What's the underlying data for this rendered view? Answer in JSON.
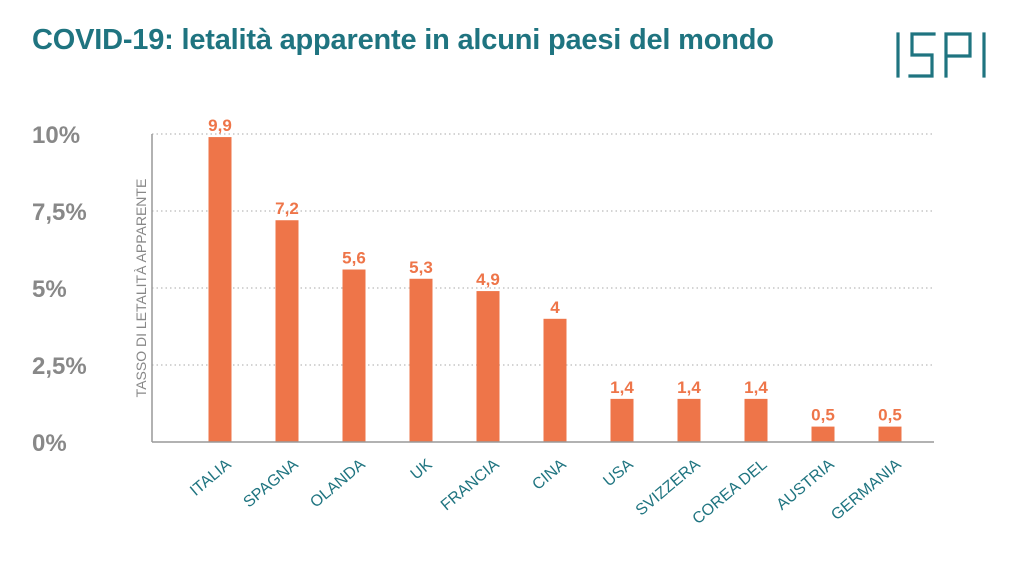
{
  "title": "COVID-19: letalità apparente in alcuni paesi del mondo",
  "logo_text": "ISPI",
  "colors": {
    "title": "#1f7480",
    "bar": "#ee7549",
    "value_label": "#ee7549",
    "category_label": "#1f7480",
    "tick_label": "#888888",
    "axis": "#999999",
    "grid": "#aaaaaa"
  },
  "chart_data": {
    "type": "bar",
    "title": "COVID-19: letalità apparente in alcuni paesi del mondo",
    "xlabel": "",
    "ylabel": "TASSO DI LETALITÀ APPARENTE",
    "categories": [
      "ITALIA",
      "SPAGNA",
      "OLANDA",
      "UK",
      "FRANCIA",
      "CINA",
      "USA",
      "SVIZZERA",
      "COREA DEL",
      "AUSTRIA",
      "GERMANIA"
    ],
    "values": [
      9.9,
      7.2,
      5.6,
      5.3,
      4.9,
      4,
      1.4,
      1.4,
      1.4,
      0.5,
      0.5
    ],
    "value_labels": [
      "9,9",
      "7,2",
      "5,6",
      "5,3",
      "4,9",
      "4",
      "1,4",
      "1,4",
      "1,4",
      "0,5",
      "0,5"
    ],
    "ylim": [
      0,
      10
    ],
    "yticks": [
      0,
      2.5,
      5,
      7.5,
      10
    ],
    "ytick_labels": [
      "0%",
      "2,5%",
      "5%",
      "7,5%",
      "10%"
    ],
    "grid": "horizontal dotted",
    "legend": "none"
  }
}
